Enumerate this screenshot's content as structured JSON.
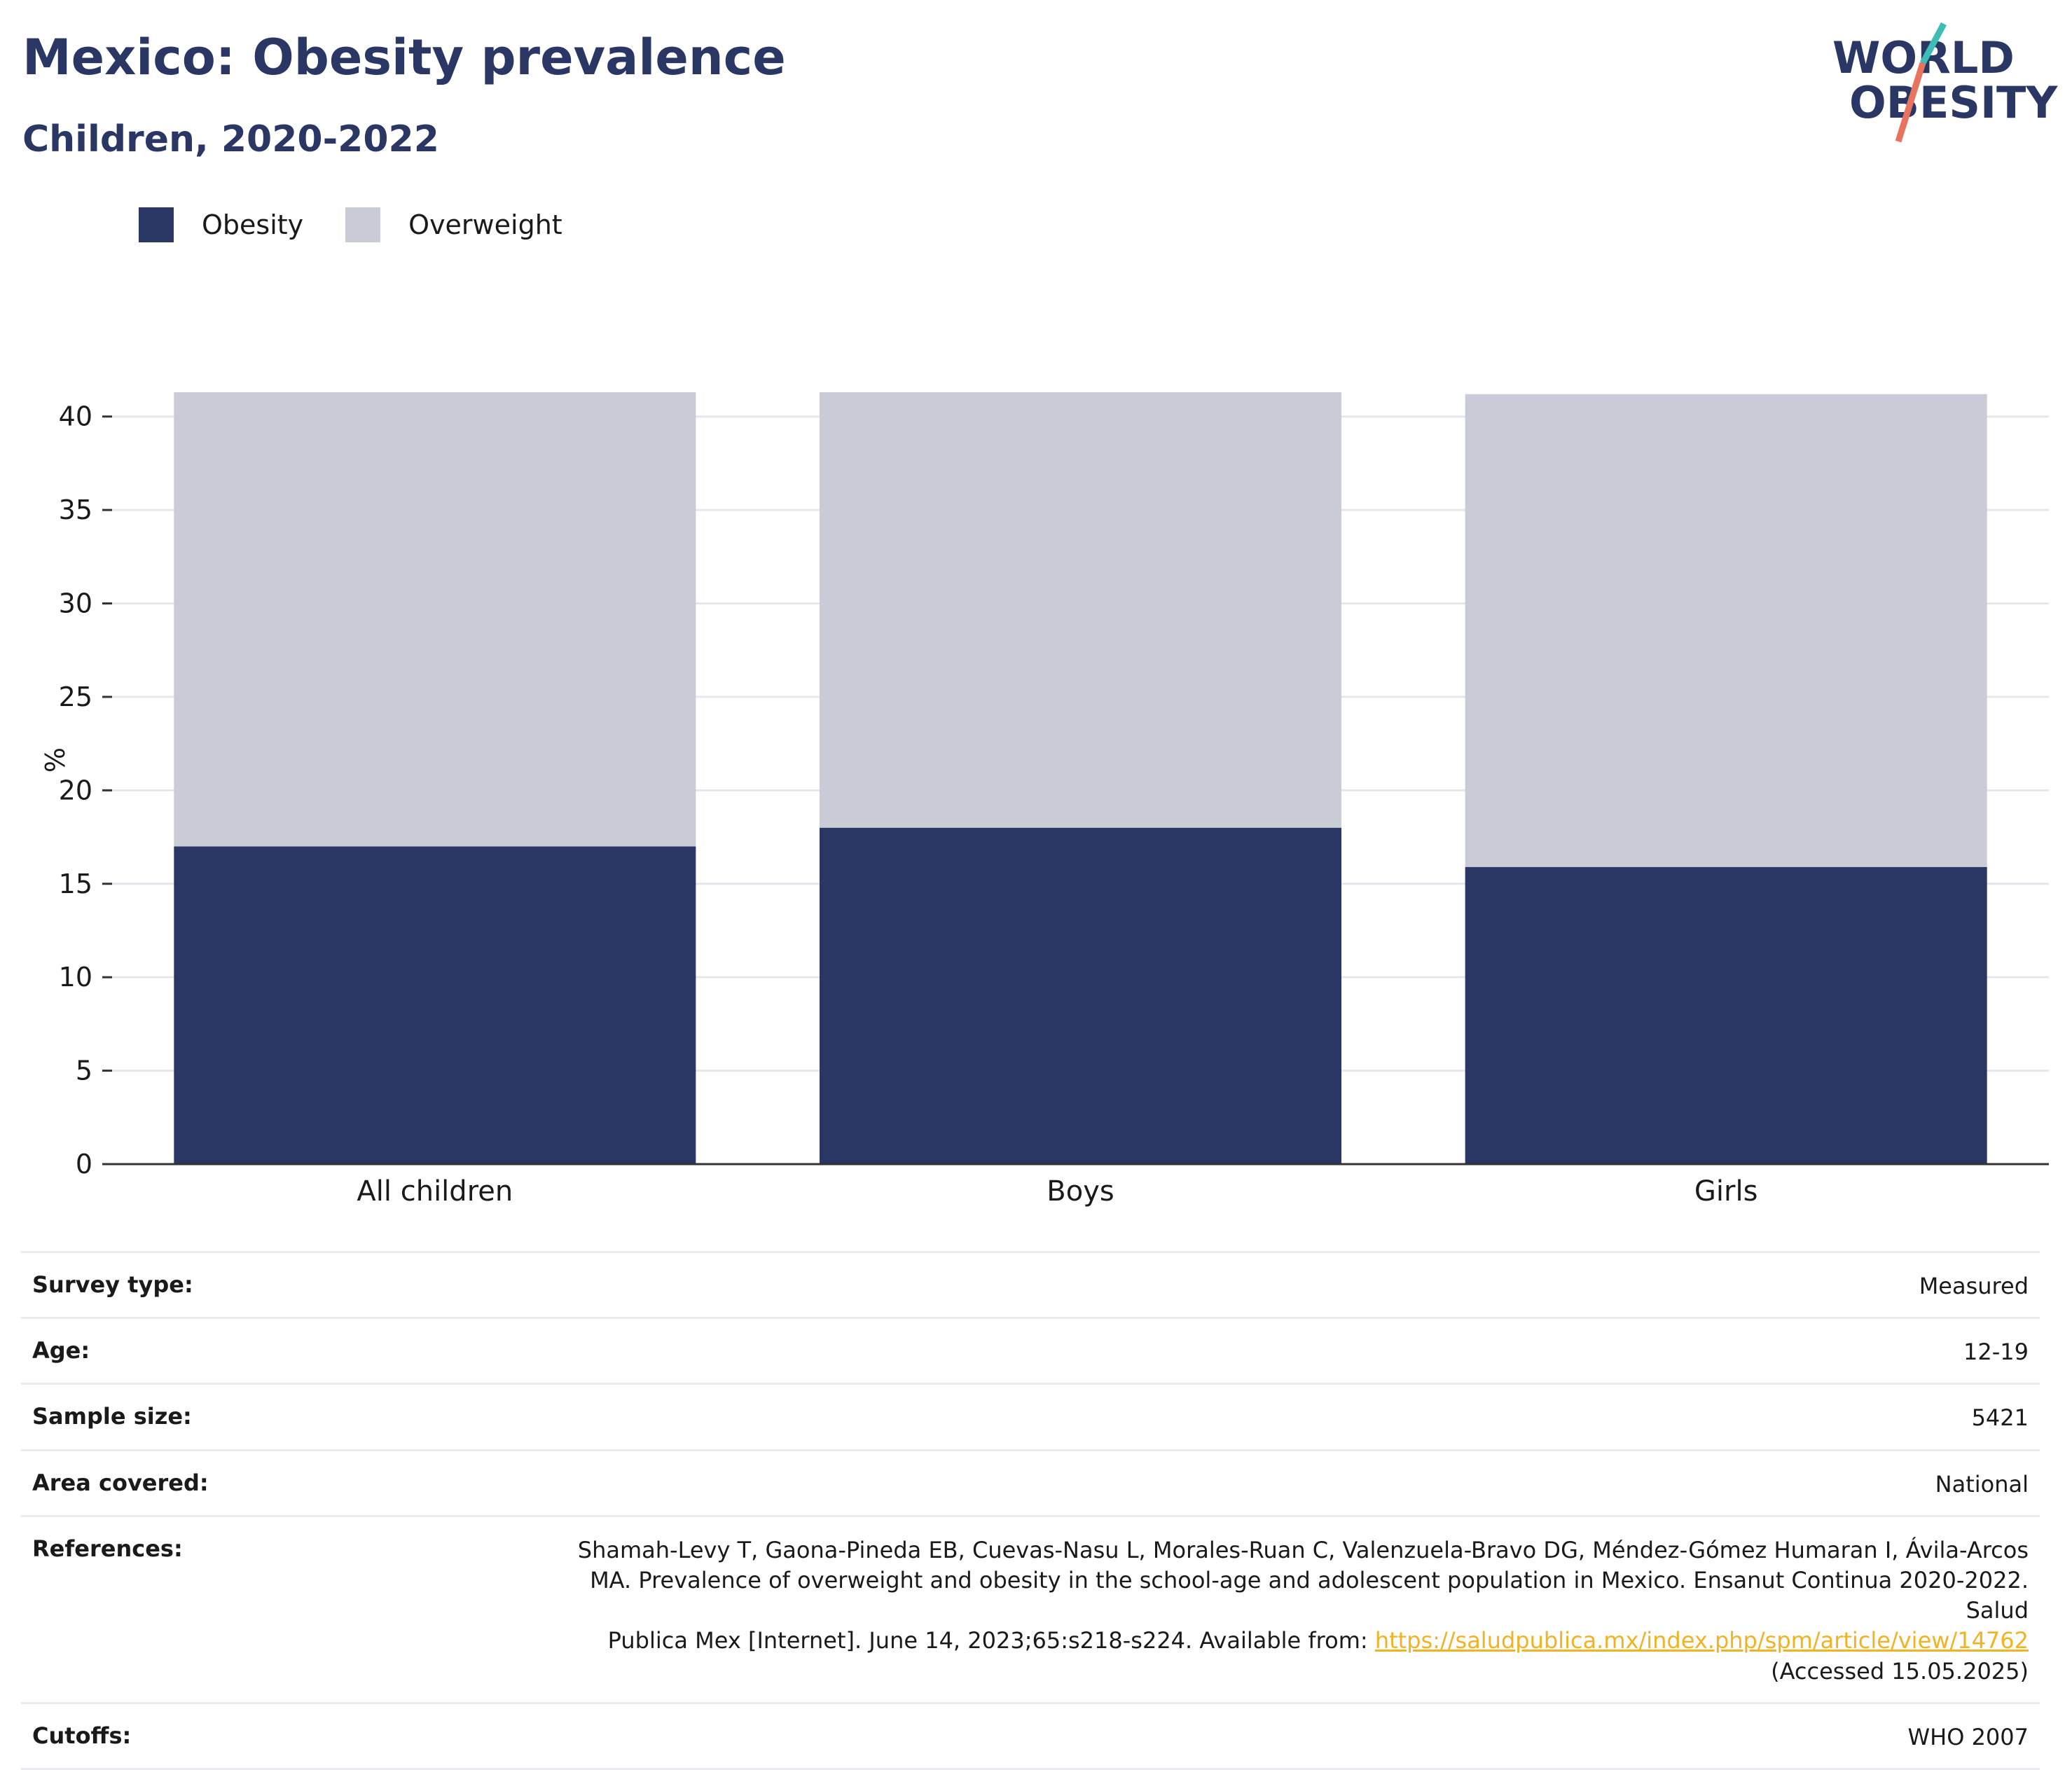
{
  "title": "Mexico: Obesity prevalence",
  "subtitle": "Children, 2020-2022",
  "logo": {
    "line1": "WORLD",
    "line2": "OBESITY"
  },
  "colors": {
    "obesity": "#2a3664",
    "overweight": "#c9cbd7",
    "title": "#2a3664",
    "link": "#f0b323",
    "logo_teal": "#3dbdb5",
    "logo_coral": "#e8735e"
  },
  "legend": [
    {
      "label": "Obesity",
      "color": "#2a3664"
    },
    {
      "label": "Overweight",
      "color": "#c9cbd7"
    }
  ],
  "chart_data": {
    "type": "bar",
    "stacked": true,
    "categories": [
      "All children",
      "Boys",
      "Girls"
    ],
    "series": [
      {
        "name": "Obesity",
        "values": [
          17.0,
          18.0,
          15.9
        ],
        "color": "#2a3664"
      },
      {
        "name": "Overweight",
        "values": [
          24.3,
          23.3,
          25.3
        ],
        "color": "#c9cbd7"
      }
    ],
    "ylabel": "%",
    "xlabel": "",
    "ylim": [
      0,
      41.3
    ],
    "yticks": [
      0,
      5,
      10,
      15,
      20,
      25,
      30,
      35,
      40
    ],
    "grid": true,
    "legend_position": "top-left"
  },
  "info": {
    "survey_type": {
      "label": "Survey type:",
      "value": "Measured"
    },
    "age": {
      "label": "Age:",
      "value": "12-19"
    },
    "sample_size": {
      "label": "Sample size:",
      "value": "5421"
    },
    "area": {
      "label": "Area covered:",
      "value": "National"
    },
    "references": {
      "label": "References:",
      "line1": "Shamah-Levy T, Gaona-Pineda EB, Cuevas-Nasu L, Morales-Ruan C, Valenzuela-Bravo DG, Méndez-Gómez Humaran I, Ávila-Arcos",
      "line2": "MA. Prevalence of overweight and obesity in the school-age and adolescent population in Mexico. Ensanut Continua 2020-2022. Salud",
      "line3": "Publica Mex [Internet]. June 14, 2023;65:s218-s224. Available from: ",
      "link": "https://saludpublica.mx/index.php/spm/article/view/14762",
      "line4": "(Accessed 15.05.2025)"
    },
    "cutoffs": {
      "label": "Cutoffs:",
      "value": "WHO 2007"
    }
  }
}
